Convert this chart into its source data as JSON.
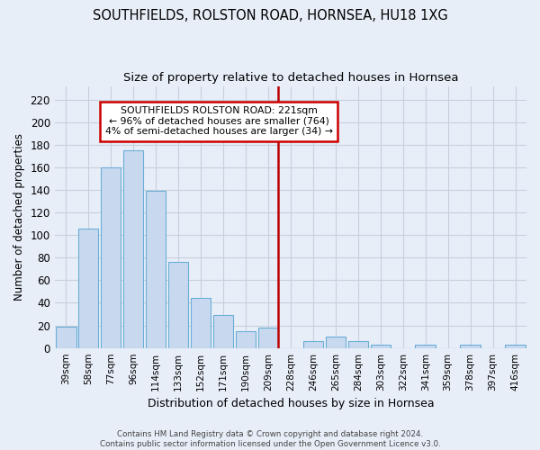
{
  "title": "SOUTHFIELDS, ROLSTON ROAD, HORNSEA, HU18 1XG",
  "subtitle": "Size of property relative to detached houses in Hornsea",
  "xlabel": "Distribution of detached houses by size in Hornsea",
  "ylabel": "Number of detached properties",
  "categories": [
    "39sqm",
    "58sqm",
    "77sqm",
    "96sqm",
    "114sqm",
    "133sqm",
    "152sqm",
    "171sqm",
    "190sqm",
    "209sqm",
    "228sqm",
    "246sqm",
    "265sqm",
    "284sqm",
    "303sqm",
    "322sqm",
    "341sqm",
    "359sqm",
    "378sqm",
    "397sqm",
    "416sqm"
  ],
  "values": [
    19,
    106,
    160,
    175,
    139,
    76,
    44,
    29,
    15,
    18,
    0,
    6,
    10,
    6,
    3,
    0,
    3,
    0,
    3,
    0,
    3
  ],
  "bar_color": "#c8d9ef",
  "bar_edge_color": "#6aaed6",
  "vline_color": "#bb0000",
  "vline_x_index": 9,
  "annotation_title": "SOUTHFIELDS ROLSTON ROAD: 221sqm",
  "annotation_line1": "← 96% of detached houses are smaller (764)",
  "annotation_line2": "4% of semi-detached houses are larger (34) →",
  "annotation_box_color": "#ffffff",
  "annotation_box_edge": "#cc0000",
  "ylim": [
    0,
    232
  ],
  "yticks": [
    0,
    20,
    40,
    60,
    80,
    100,
    120,
    140,
    160,
    180,
    200,
    220
  ],
  "background_color": "#e8eef8",
  "grid_color": "#c8d0dc",
  "title_fontsize": 10.5,
  "subtitle_fontsize": 9.5,
  "footer_line1": "Contains HM Land Registry data © Crown copyright and database right 2024.",
  "footer_line2": "Contains public sector information licensed under the Open Government Licence v3.0."
}
